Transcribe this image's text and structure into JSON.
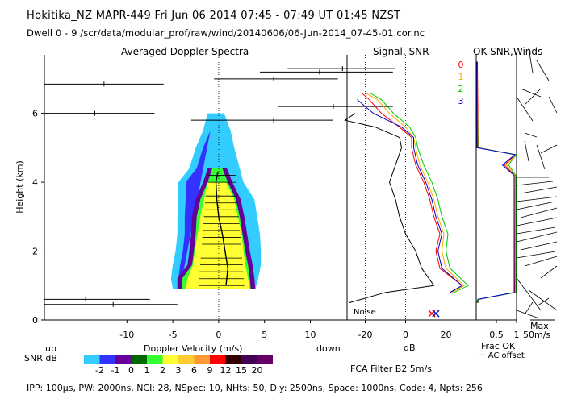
{
  "header": {
    "line1": "Hokitika_NZ  MAPR-449  Fri Jun 06 2014 07:45 - 07:49 UT 01:45 NZST",
    "line2": "Dwell  0 - 9   /scr/data/modular_prof/raw/wind/20140606/06-Jun-2014_07-45-01.cor.nc"
  },
  "panels": {
    "spectra_title": "Averaged Doppler Spectra",
    "snr_title": "Signal, SNR",
    "ok_title": "OK SNR,Winds"
  },
  "labels": {
    "up": "up",
    "down": "down",
    "snr_db": "SNR dB",
    "noise": "Noise",
    "frac_ok": "Frac OK",
    "ac_offset": "··· AC offset",
    "max": "Max",
    "max_val": "50m/s",
    "fca": "FCA Filter B2  5m/s",
    "db_xlabel": "dB"
  },
  "footer": "IPP: 100µs,  PW: 2000ns,  NCI:  28,  NSpec: 10, NHts: 50,  Dly: 2500ns,  Space: 1000ns,  Code: 4,  Npts: 256",
  "colorbar": {
    "colors": [
      "#33ccff",
      "#3333ff",
      "#660099",
      "#006600",
      "#33ff33",
      "#ffff33",
      "#ffcc33",
      "#ff9933",
      "#ff0000",
      "#330000",
      "#440055",
      "#660066"
    ],
    "labels": [
      "-2",
      "-1",
      "0",
      "1",
      "2",
      "3",
      "6",
      "9",
      "12",
      "15",
      "20"
    ]
  },
  "chart_data": [
    {
      "type": "heatmap",
      "title": "Averaged Doppler Spectra",
      "xlabel": "Doppler Velocity (m/s)",
      "ylabel": "Height (km)",
      "xlim": [
        -19,
        14
      ],
      "ylim": [
        0,
        7.7
      ],
      "xticks": [
        "-10",
        "-5",
        "0",
        "5",
        "10"
      ],
      "yticks": [
        "0",
        "2",
        "4",
        "6"
      ],
      "spectral_extent": {
        "heights": [
          0.9,
          1.2,
          1.6,
          2.0,
          2.5,
          3.0,
          3.5,
          4.0,
          4.4,
          5.0,
          5.5,
          6.0
        ],
        "snr_ge_minus2_left": [
          -5.0,
          -5.2,
          -5.0,
          -4.7,
          -4.5,
          -4.5,
          -4.4,
          -4.4,
          -3.2,
          -2.5,
          -1.7,
          -1.2
        ],
        "snr_ge_minus2_right": [
          4.0,
          4.3,
          4.6,
          4.6,
          4.5,
          4.2,
          3.9,
          2.7,
          2.3,
          1.7,
          1.3,
          0.6
        ],
        "snr_ge_0_left": [
          -4.5,
          -4.5,
          -3.4,
          -3.2,
          -3.0,
          -2.9,
          -2.5,
          -1.7,
          -1.2
        ],
        "snr_ge_0_right": [
          4.0,
          3.9,
          3.7,
          3.4,
          3.1,
          2.8,
          2.4,
          1.5,
          0.9
        ],
        "snr_ge_3_left": [
          -3.6,
          -3.4,
          -2.8,
          -2.6,
          -2.3,
          -2.0,
          -1.6,
          -1.2
        ],
        "snr_ge_3_right": [
          3.4,
          3.2,
          2.9,
          2.7,
          2.5,
          2.1,
          1.7,
          0.8
        ]
      },
      "mean_velocity": {
        "heights": [
          1.0,
          1.5,
          2.0,
          2.5,
          3.0,
          3.5,
          4.0,
          4.3
        ],
        "values": [
          0.8,
          1.0,
          0.7,
          0.4,
          0.0,
          -0.2,
          -0.3,
          -0.1
        ]
      },
      "outliers": [
        {
          "h": 7.3,
          "x": 13.5,
          "xmin": 7.5,
          "xmax": 20.0
        },
        {
          "h": 7.2,
          "x": 11.0,
          "xmin": 4.5,
          "xmax": 19.0
        },
        {
          "h": 7.0,
          "x": 6.0,
          "xmin": -0.5,
          "xmax": 13.0
        },
        {
          "h": 6.85,
          "x": -12.5,
          "xmin": -19.0,
          "xmax": -6.0
        },
        {
          "h": 6.2,
          "x": 12.5,
          "xmin": 6.5,
          "xmax": 19.0
        },
        {
          "h": 6.0,
          "x": -13.5,
          "xmin": -19.0,
          "xmax": -7.0
        },
        {
          "h": 5.8,
          "x": 6.0,
          "xmin": -3.0,
          "xmax": 12.5
        },
        {
          "h": 0.6,
          "x": -14.5,
          "xmin": -19.0,
          "xmax": -7.5
        },
        {
          "h": 0.45,
          "x": -11.5,
          "xmin": -19.0,
          "xmax": -4.5
        }
      ]
    },
    {
      "type": "line",
      "title": "Signal, SNR",
      "xlabel": "dB",
      "xlim": [
        -29,
        35
      ],
      "xticks": [
        "-20",
        "0",
        "20"
      ],
      "ylim": [
        0,
        7.7
      ],
      "legend": [
        "0",
        "1",
        "2",
        "3"
      ],
      "legend_colors": [
        "#ff0000",
        "#ffaa00",
        "#00cc00",
        "#0000cc"
      ],
      "dotted_verticals": [
        -20,
        0,
        20
      ],
      "noise_markers": [
        {
          "x": 13,
          "color": "#ff0000"
        },
        {
          "x": 15,
          "color": "#0000cc"
        }
      ],
      "series": [
        {
          "name": "signal",
          "color": "#000000",
          "h": [
            0.5,
            0.8,
            1.0,
            1.5,
            2.0,
            2.5,
            3.0,
            3.5,
            4.0,
            4.5,
            5.0,
            5.3,
            5.6,
            5.8,
            6.0
          ],
          "x": [
            -28,
            -10,
            14,
            8,
            5,
            0,
            -3,
            -5,
            -8,
            -5,
            -2,
            -3,
            -15,
            -30,
            -25
          ]
        },
        {
          "name": "0",
          "color": "#ff0000",
          "h": [
            0.8,
            1.0,
            1.5,
            2.0,
            2.5,
            3.0,
            3.5,
            4.0,
            4.5,
            5.0,
            5.3,
            5.6,
            6.0,
            6.4,
            6.6
          ],
          "x": [
            22,
            28,
            17,
            15,
            17,
            14,
            12,
            9,
            5,
            3,
            3,
            -3,
            -12,
            -18,
            -22
          ]
        },
        {
          "name": "1",
          "color": "#ffaa00",
          "h": [
            0.8,
            1.0,
            1.5,
            2.0,
            2.5,
            3.0,
            3.5,
            4.0,
            4.5,
            5.0,
            5.3,
            5.6,
            6.0,
            6.4,
            6.6
          ],
          "x": [
            23,
            29,
            20,
            18,
            19,
            16,
            14,
            11,
            7,
            5,
            4,
            0,
            -8,
            -14,
            -20
          ]
        },
        {
          "name": "2",
          "color": "#00cc00",
          "h": [
            0.8,
            1.0,
            1.5,
            2.0,
            2.5,
            3.0,
            3.5,
            4.0,
            4.5,
            5.0,
            5.3,
            5.6,
            6.0,
            6.4,
            6.6
          ],
          "x": [
            24,
            31,
            22,
            20,
            21,
            18,
            16,
            13,
            9,
            6,
            5,
            2,
            -6,
            -12,
            -18
          ]
        },
        {
          "name": "3",
          "color": "#0000cc",
          "h": [
            0.8,
            1.0,
            1.5,
            2.0,
            2.5,
            3.0,
            3.5,
            4.0,
            4.5,
            5.0,
            5.3,
            5.6,
            6.0,
            6.4
          ],
          "x": [
            22,
            28,
            18,
            16,
            18,
            15,
            13,
            10,
            6,
            4,
            4,
            -2,
            -16,
            -24
          ]
        }
      ]
    },
    {
      "type": "line",
      "title": "OK SNR,Winds",
      "xlabel": "Frac OK",
      "xlim": [
        0,
        1
      ],
      "xticks": [
        "0.5",
        "1"
      ],
      "ylim": [
        0,
        7.7
      ],
      "series": [
        {
          "name": "0",
          "color": "#ff0000",
          "h": [
            0.5,
            0.6,
            0.8,
            4.2,
            4.5,
            4.8,
            5.0,
            7.5
          ],
          "x": [
            0.05,
            0.06,
            0.95,
            0.95,
            0.7,
            0.97,
            0.05,
            0.03
          ]
        },
        {
          "name": "1",
          "color": "#ffaa00",
          "h": [
            0.5,
            0.6,
            0.8,
            4.2,
            4.5,
            4.8,
            5.0,
            7.5
          ],
          "x": [
            0.04,
            0.05,
            0.97,
            0.96,
            0.75,
            0.98,
            0.04,
            0.02
          ]
        },
        {
          "name": "2",
          "color": "#00cc00",
          "h": [
            0.5,
            0.6,
            0.8,
            4.2,
            4.5,
            4.8,
            5.0,
            7.5
          ],
          "x": [
            0.04,
            0.05,
            0.98,
            0.98,
            0.8,
            0.99,
            0.04,
            0.02
          ]
        },
        {
          "name": "3",
          "color": "#0000cc",
          "h": [
            0.5,
            0.6,
            0.8,
            4.2,
            4.5,
            4.8,
            5.0,
            7.5
          ],
          "x": [
            0.02,
            0.04,
            0.94,
            0.94,
            0.65,
            0.96,
            0.02,
            0.02
          ]
        }
      ]
    }
  ]
}
